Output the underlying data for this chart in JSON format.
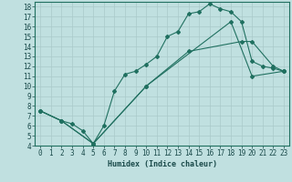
{
  "xlabel": "Humidex (Indice chaleur)",
  "ylabel": "",
  "bg_color": "#c0e0e0",
  "grid_color": "#b0d0d0",
  "line_color": "#207060",
  "xlim": [
    -0.5,
    23.5
  ],
  "ylim": [
    4,
    18.5
  ],
  "xticks": [
    0,
    1,
    2,
    3,
    4,
    5,
    6,
    7,
    8,
    9,
    10,
    11,
    12,
    13,
    14,
    15,
    16,
    17,
    18,
    19,
    20,
    21,
    22,
    23
  ],
  "yticks": [
    4,
    5,
    6,
    7,
    8,
    9,
    10,
    11,
    12,
    13,
    14,
    15,
    16,
    17,
    18
  ],
  "line1_x": [
    0,
    2,
    3,
    4,
    5,
    6,
    7,
    8,
    9,
    10,
    11,
    12,
    13,
    14,
    15,
    16,
    17,
    18,
    19,
    20,
    21,
    22,
    23
  ],
  "line1_y": [
    7.5,
    6.5,
    6.2,
    5.5,
    4.2,
    6.0,
    9.5,
    11.2,
    11.5,
    12.2,
    13.0,
    15.0,
    15.5,
    17.3,
    17.5,
    18.3,
    17.8,
    17.5,
    16.5,
    12.5,
    12.0,
    11.8,
    11.5
  ],
  "line2_x": [
    0,
    2,
    5,
    10,
    14,
    19,
    20,
    22,
    23
  ],
  "line2_y": [
    7.5,
    6.5,
    4.2,
    10.0,
    13.5,
    14.5,
    14.5,
    12.0,
    11.5
  ],
  "line3_x": [
    0,
    2,
    5,
    10,
    18,
    20,
    23
  ],
  "line3_y": [
    7.5,
    6.5,
    4.2,
    10.0,
    16.5,
    11.0,
    11.5
  ]
}
